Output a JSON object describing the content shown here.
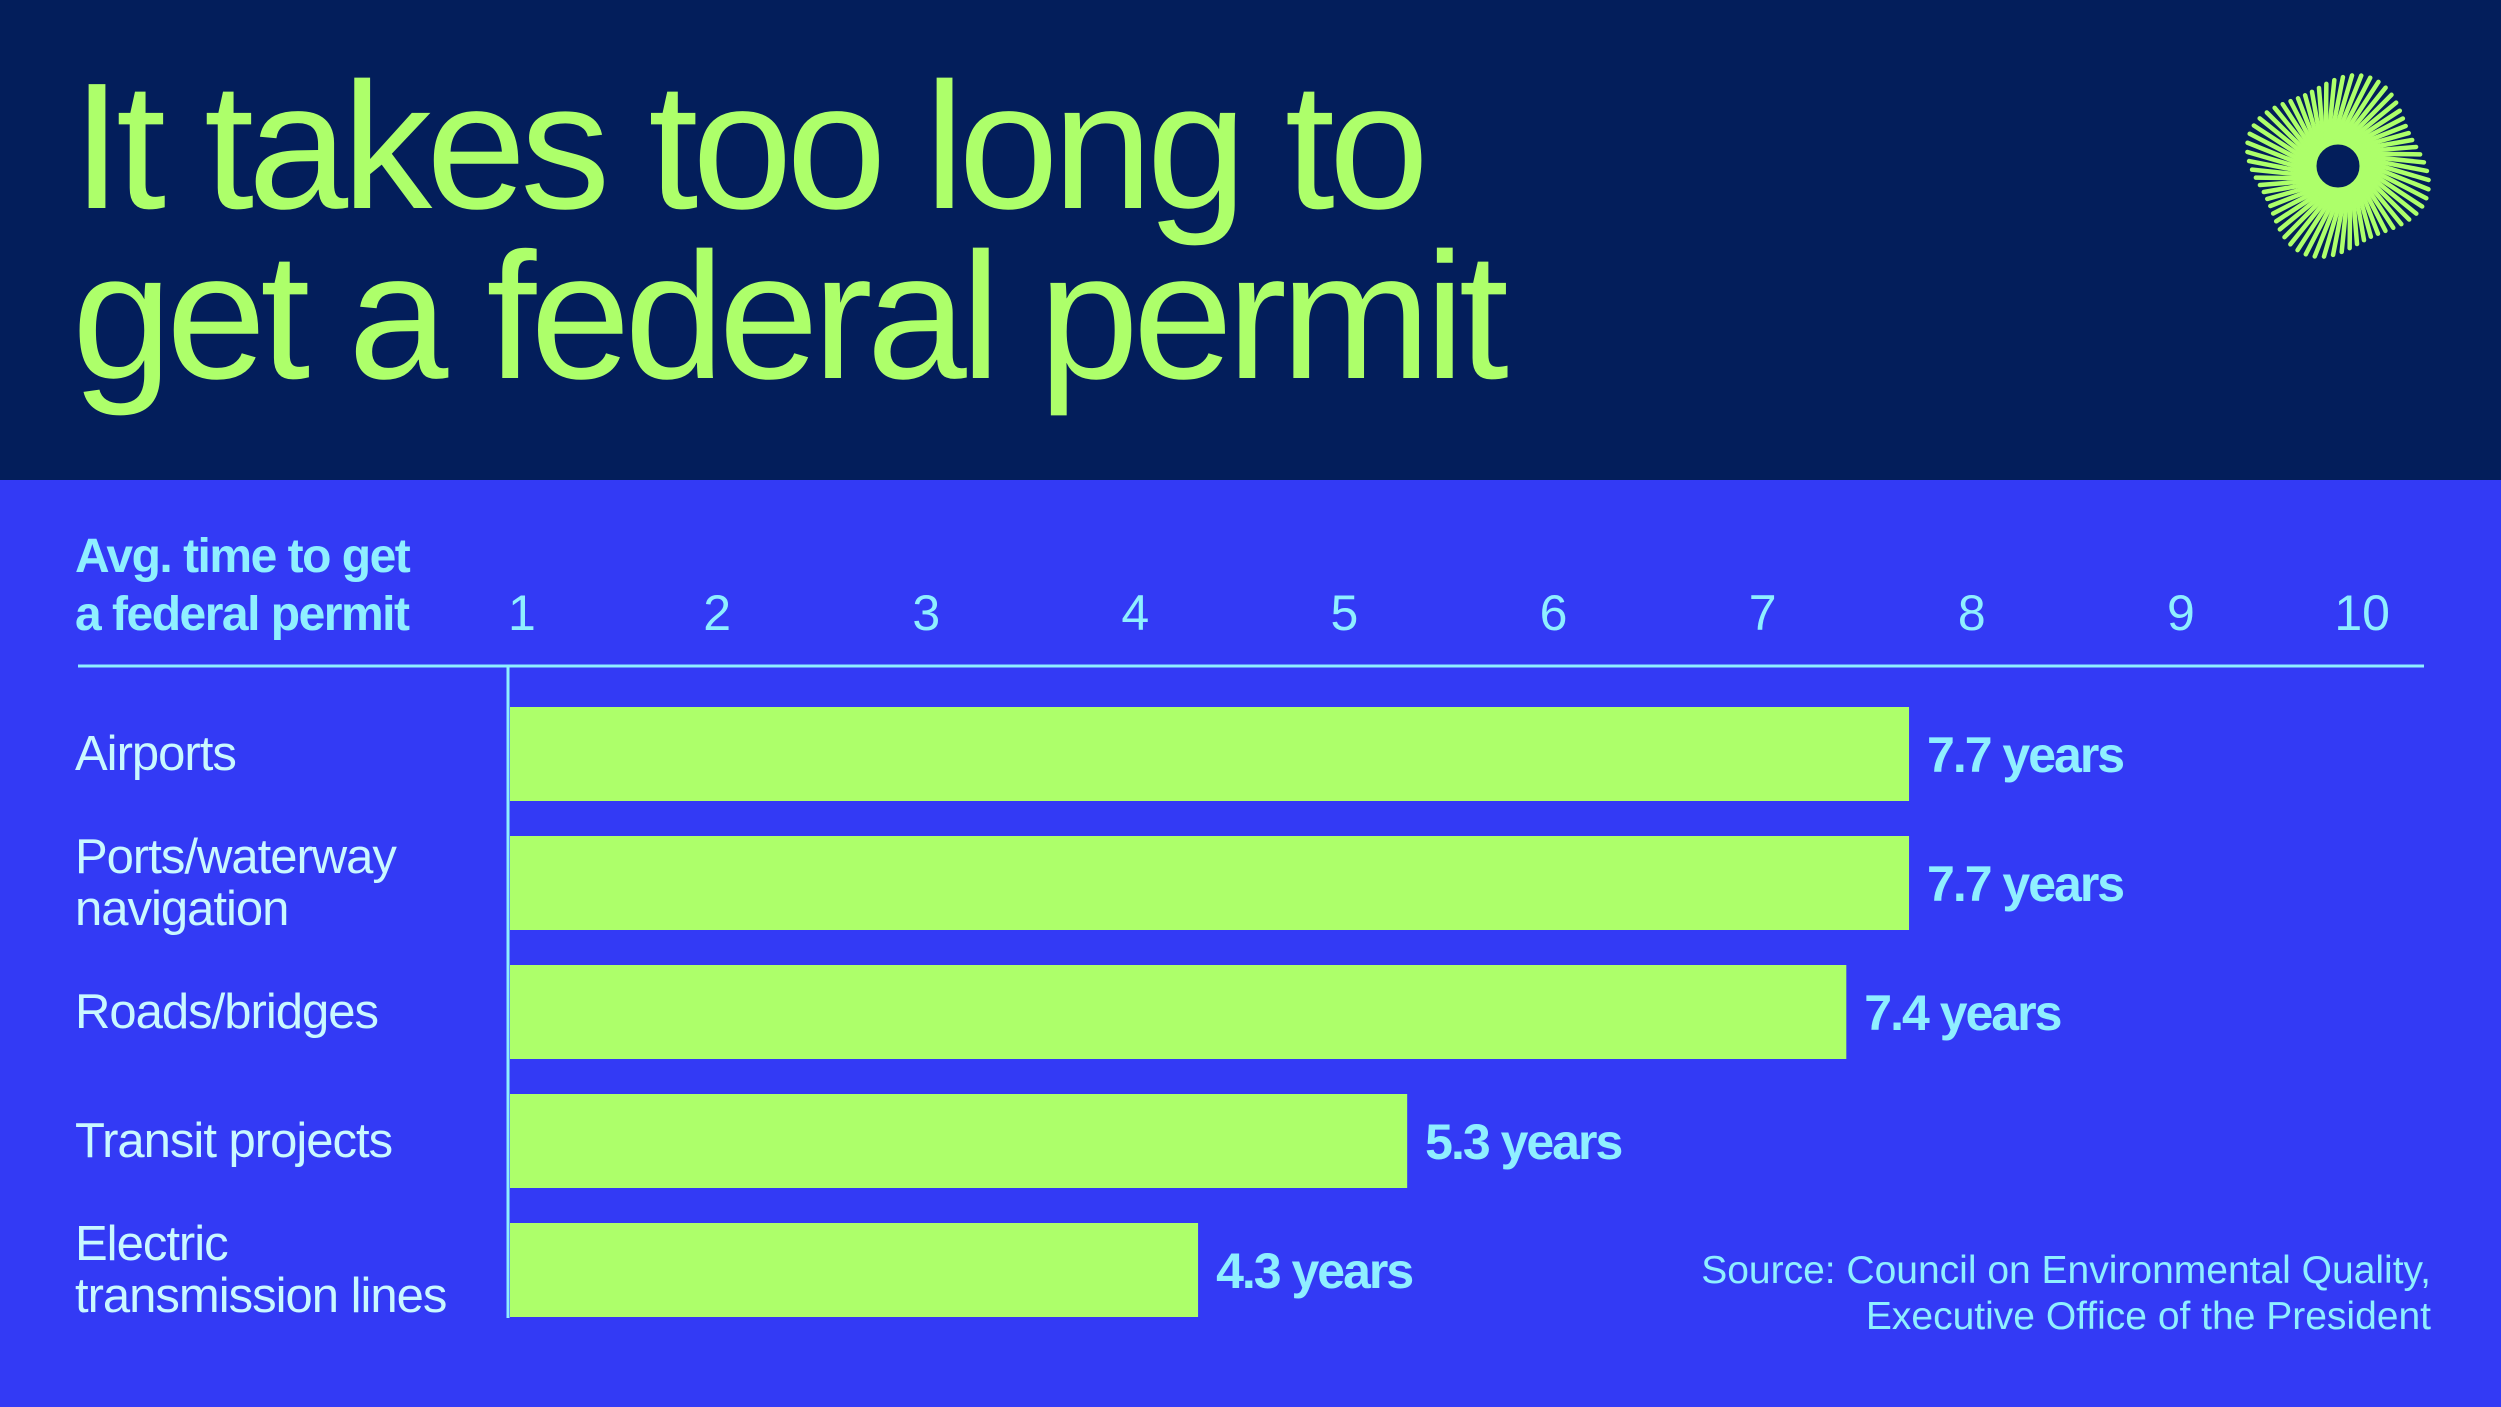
{
  "header": {
    "title_lines": [
      "It takes too long to",
      "get a federal permit"
    ]
  },
  "logo": {
    "icon": "sunburst-logo-icon"
  },
  "chart_data": {
    "type": "bar",
    "orientation": "horizontal",
    "ylabel_lines": [
      "Avg. time to get",
      "a federal permit"
    ],
    "categories": [
      [
        "Airports"
      ],
      [
        "Ports/waterway",
        "navigation"
      ],
      [
        "Roads/bridges"
      ],
      [
        "Transit projects"
      ],
      [
        "Electric",
        "transmission lines"
      ]
    ],
    "values": [
      7.7,
      7.7,
      7.4,
      5.3,
      4.3
    ],
    "data_labels": [
      "7.7 years",
      "7.7 years",
      "7.4 years",
      "5.3 years",
      "4.3 years"
    ],
    "x_ticks": [
      1,
      2,
      3,
      4,
      5,
      6,
      7,
      8,
      9,
      10
    ],
    "xlim": [
      1,
      10
    ],
    "tick_position": "top",
    "grid": false,
    "legend": "none"
  },
  "source_lines": [
    "Source: Council on Environmental Quality,",
    "Executive Office of the President"
  ],
  "colors": {
    "header_bg": "#031E5B",
    "panel_bg": "#333AF5",
    "accent_green": "#ADFF6A",
    "label_cyan": "#8FEFFF",
    "category_text": "#C9F8FF"
  }
}
